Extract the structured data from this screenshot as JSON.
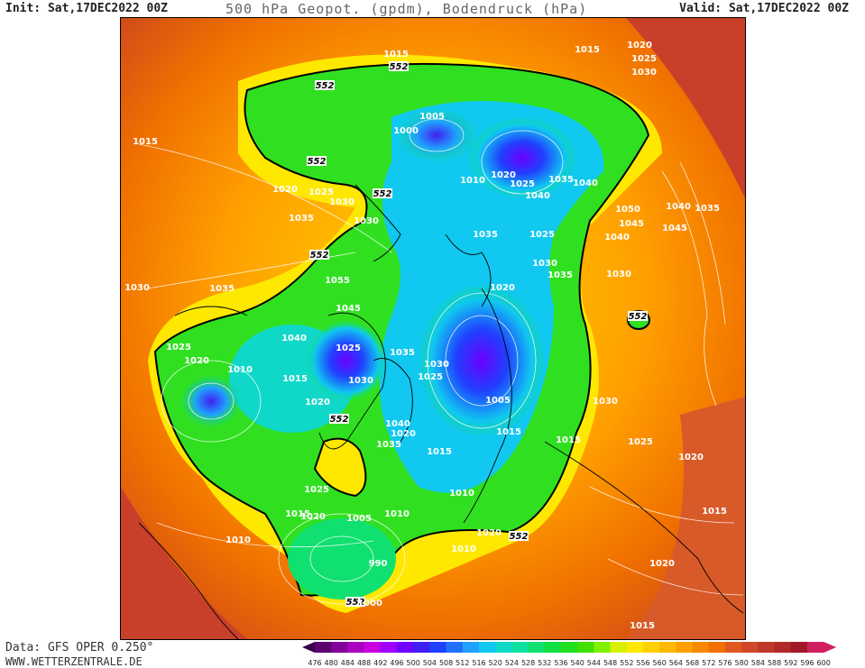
{
  "header": {
    "init": "Init: Sat,17DEC2022 00Z",
    "title": "500 hPa Geopot. (gpdm), Bodendruck (hPa)",
    "valid": "Valid: Sat,17DEC2022 00Z"
  },
  "footer": {
    "source": "Data: GFS OPER 0.250°",
    "website": "WWW.WETTERZENTRALE.DE"
  },
  "colorbar": {
    "values": [
      "476",
      "480",
      "484",
      "488",
      "492",
      "496",
      "500",
      "504",
      "508",
      "512",
      "516",
      "520",
      "524",
      "528",
      "532",
      "536",
      "540",
      "544",
      "548",
      "552",
      "556",
      "560",
      "564",
      "568",
      "572",
      "576",
      "580",
      "584",
      "588",
      "592",
      "596",
      "600"
    ],
    "colors": [
      "#3a0048",
      "#5c0070",
      "#82009a",
      "#a800c0",
      "#c800e0",
      "#a000ff",
      "#7000ff",
      "#4020f0",
      "#2040ff",
      "#2070ff",
      "#20a0ff",
      "#10c8f0",
      "#10d8c8",
      "#10e0a0",
      "#10e070",
      "#10e040",
      "#20e020",
      "#40e000",
      "#80f000",
      "#d8f000",
      "#ffe800",
      "#ffd000",
      "#ffb800",
      "#ffa000",
      "#f88800",
      "#f07000",
      "#e05820",
      "#d04828",
      "#c03828",
      "#b02828",
      "#a01828",
      "#d02060"
    ]
  },
  "map": {
    "geopotential_label": "552",
    "pressure_labels": [
      {
        "text": "1015"
      },
      {
        "text": "1015"
      },
      {
        "text": "1015"
      },
      {
        "text": "1020"
      },
      {
        "text": "1025"
      },
      {
        "text": "1030"
      },
      {
        "text": "1005"
      },
      {
        "text": "1000"
      },
      {
        "text": "1020"
      },
      {
        "text": "1025"
      },
      {
        "text": "1010"
      },
      {
        "text": "1035"
      },
      {
        "text": "1040"
      },
      {
        "text": "1040"
      },
      {
        "text": "1020"
      },
      {
        "text": "1025"
      },
      {
        "text": "1030"
      },
      {
        "text": "1035"
      },
      {
        "text": "1030"
      },
      {
        "text": "1035"
      },
      {
        "text": "1025"
      },
      {
        "text": "1035"
      },
      {
        "text": "1030"
      },
      {
        "text": "1050"
      },
      {
        "text": "1045"
      },
      {
        "text": "1040"
      },
      {
        "text": "1035"
      },
      {
        "text": "1040"
      },
      {
        "text": "1045"
      },
      {
        "text": "1030"
      },
      {
        "text": "1020"
      },
      {
        "text": "1055"
      },
      {
        "text": "1045"
      },
      {
        "text": "1040"
      },
      {
        "text": "1025"
      },
      {
        "text": "1035"
      },
      {
        "text": "1030"
      },
      {
        "text": "1030"
      },
      {
        "text": "1025"
      },
      {
        "text": "1025"
      },
      {
        "text": "1020"
      },
      {
        "text": "1010"
      },
      {
        "text": "1015"
      },
      {
        "text": "1020"
      },
      {
        "text": "1005"
      },
      {
        "text": "1015"
      },
      {
        "text": "1040"
      },
      {
        "text": "1020"
      },
      {
        "text": "1035"
      },
      {
        "text": "1015"
      },
      {
        "text": "1030"
      },
      {
        "text": "1030"
      },
      {
        "text": "1025"
      },
      {
        "text": "1015"
      },
      {
        "text": "1010"
      },
      {
        "text": "1005"
      },
      {
        "text": "1010"
      },
      {
        "text": "990"
      },
      {
        "text": "1000"
      },
      {
        "text": "1010"
      },
      {
        "text": "1020"
      },
      {
        "text": "1015"
      },
      {
        "text": "1025"
      },
      {
        "text": "1020"
      },
      {
        "text": "1015"
      },
      {
        "text": "1020"
      },
      {
        "text": "1015"
      },
      {
        "text": "1020"
      },
      {
        "text": "1010"
      },
      {
        "text": "1035"
      }
    ]
  }
}
